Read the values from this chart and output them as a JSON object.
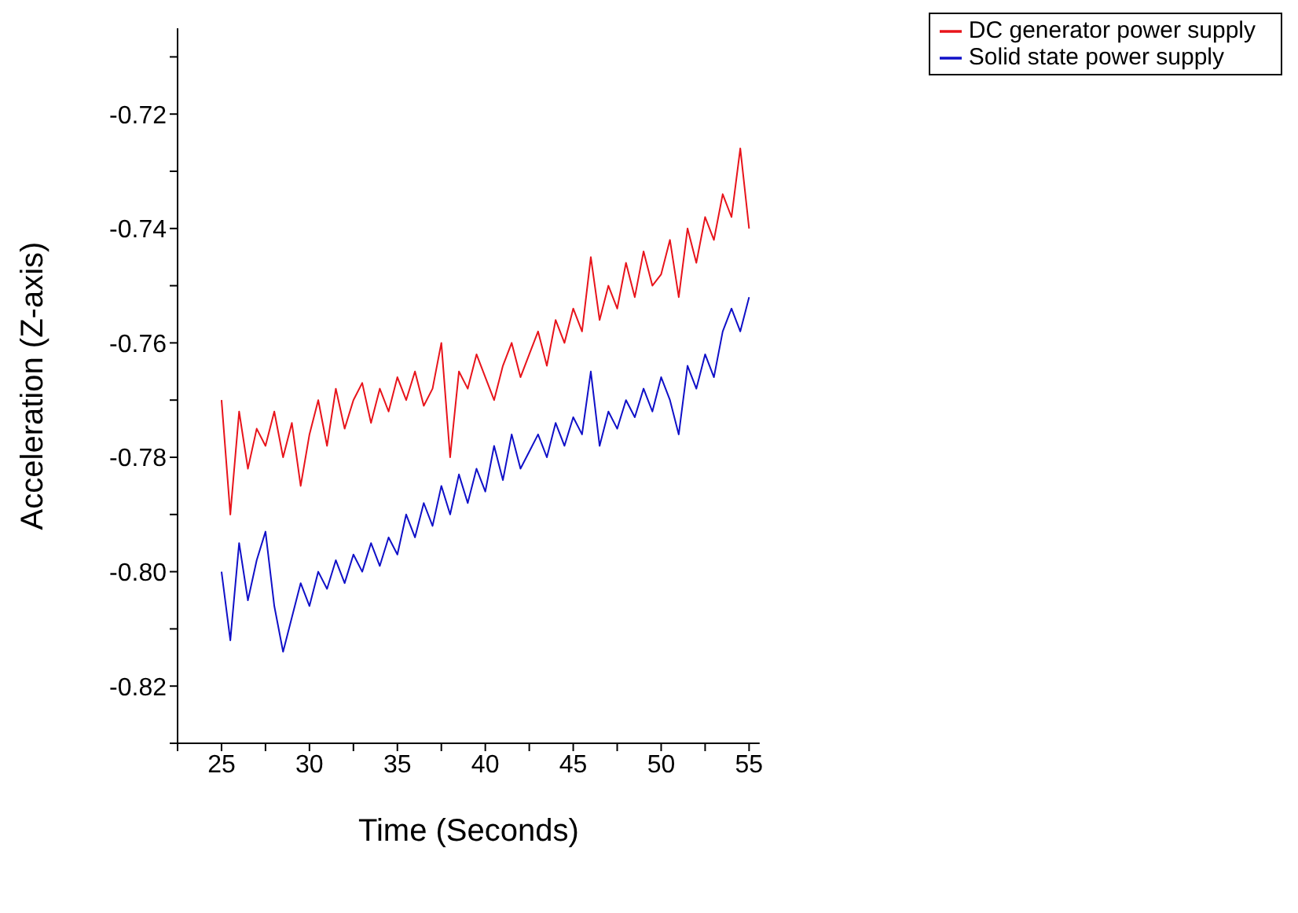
{
  "chart_data": {
    "type": "line",
    "xlabel": "Time (Seconds)",
    "ylabel": "Acceleration (Z-axis)",
    "x": [
      25,
      25.5,
      26,
      26.5,
      27,
      27.5,
      28,
      28.5,
      29,
      29.5,
      30,
      30.5,
      31,
      31.5,
      32,
      32.5,
      33,
      33.5,
      34,
      34.5,
      35,
      35.5,
      36,
      36.5,
      37,
      37.5,
      38,
      38.5,
      39,
      39.5,
      40,
      40.5,
      41,
      41.5,
      42,
      42.5,
      43,
      43.5,
      44,
      44.5,
      45,
      45.5,
      46,
      46.5,
      47,
      47.5,
      48,
      48.5,
      49,
      49.5,
      50,
      50.5,
      51,
      51.5,
      52,
      52.5,
      53,
      53.5,
      54,
      54.5,
      55
    ],
    "series": [
      {
        "name": "DC generator power supply",
        "color": "#e8141b",
        "values": [
          -0.77,
          -0.79,
          -0.772,
          -0.782,
          -0.775,
          -0.778,
          -0.772,
          -0.78,
          -0.774,
          -0.785,
          -0.776,
          -0.77,
          -0.778,
          -0.768,
          -0.775,
          -0.77,
          -0.767,
          -0.774,
          -0.768,
          -0.772,
          -0.766,
          -0.77,
          -0.765,
          -0.771,
          -0.768,
          -0.76,
          -0.78,
          -0.765,
          -0.768,
          -0.762,
          -0.766,
          -0.77,
          -0.764,
          -0.76,
          -0.766,
          -0.762,
          -0.758,
          -0.764,
          -0.756,
          -0.76,
          -0.754,
          -0.758,
          -0.745,
          -0.756,
          -0.75,
          -0.754,
          -0.746,
          -0.752,
          -0.744,
          -0.75,
          -0.748,
          -0.742,
          -0.752,
          -0.74,
          -0.746,
          -0.738,
          -0.742,
          -0.734,
          -0.738,
          -0.726,
          -0.74
        ]
      },
      {
        "name": "Solid state power supply",
        "color": "#1010c8",
        "values": [
          -0.8,
          -0.812,
          -0.795,
          -0.805,
          -0.798,
          -0.793,
          -0.806,
          -0.814,
          -0.808,
          -0.802,
          -0.806,
          -0.8,
          -0.803,
          -0.798,
          -0.802,
          -0.797,
          -0.8,
          -0.795,
          -0.799,
          -0.794,
          -0.797,
          -0.79,
          -0.794,
          -0.788,
          -0.792,
          -0.785,
          -0.79,
          -0.783,
          -0.788,
          -0.782,
          -0.786,
          -0.778,
          -0.784,
          -0.776,
          -0.782,
          -0.779,
          -0.776,
          -0.78,
          -0.774,
          -0.778,
          -0.773,
          -0.776,
          -0.765,
          -0.778,
          -0.772,
          -0.775,
          -0.77,
          -0.773,
          -0.768,
          -0.772,
          -0.766,
          -0.77,
          -0.776,
          -0.764,
          -0.768,
          -0.762,
          -0.766,
          -0.758,
          -0.754,
          -0.758,
          -0.752
        ]
      }
    ],
    "xlim": [
      22.5,
      55.6
    ],
    "xticks": [
      {
        "value": 22.5,
        "label": null
      },
      25,
      {
        "value": 27.5,
        "label": null
      },
      30,
      {
        "value": 32.5,
        "label": null
      },
      35,
      {
        "value": 37.5,
        "label": null
      },
      40,
      {
        "value": 42.5,
        "label": null
      },
      45,
      {
        "value": 47.5,
        "label": null
      },
      50,
      {
        "value": 52.5,
        "label": null
      },
      55
    ],
    "ylim": [
      -0.83,
      -0.705
    ],
    "yticks": [
      {
        "value": -0.83,
        "label": null
      },
      {
        "value": -0.82,
        "label": "-0.82"
      },
      {
        "value": -0.81,
        "label": null
      },
      {
        "value": -0.8,
        "label": "-0.80"
      },
      {
        "value": -0.79,
        "label": null
      },
      {
        "value": -0.78,
        "label": "-0.78"
      },
      {
        "value": -0.77,
        "label": null
      },
      {
        "value": -0.76,
        "label": "-0.76"
      },
      {
        "value": -0.75,
        "label": null
      },
      {
        "value": -0.74,
        "label": "-0.74"
      },
      {
        "value": -0.73,
        "label": null
      },
      {
        "value": -0.72,
        "label": "-0.72"
      },
      {
        "value": -0.71,
        "label": null
      }
    ],
    "grid": false,
    "legend": "top right",
    "marker": "none",
    "line_style": "solid"
  }
}
